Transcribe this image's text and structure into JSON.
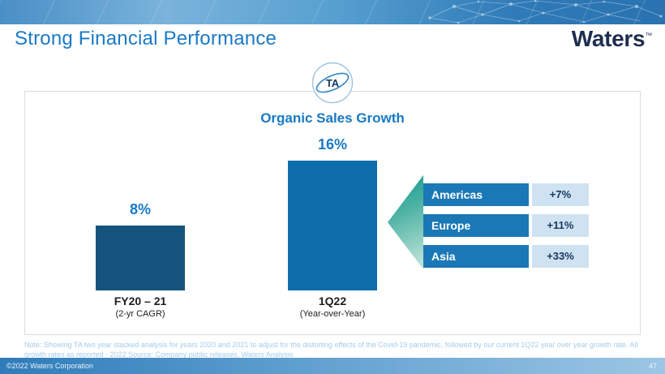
{
  "top": {
    "title": "Strong Financial Performance",
    "brand_name": "Waters",
    "brand_tm": "™"
  },
  "card": {
    "logo": "TA"
  },
  "chart_data": {
    "type": "bar",
    "title": "Organic Sales Growth",
    "categories": [
      "FY20 – 21",
      "1Q22"
    ],
    "category_subtitles": [
      "(2-yr CAGR)",
      "(Year-over-Year)"
    ],
    "values": [
      8,
      16
    ],
    "value_labels": [
      "8%",
      "16%"
    ],
    "unit": "percent",
    "ylim": [
      0,
      17
    ],
    "grid": false,
    "legend": "none",
    "bar_colors": [
      "#15537d",
      "#0d6dab"
    ],
    "regions": [
      {
        "name": "Americas",
        "growth": "+7%"
      },
      {
        "name": "Europe",
        "growth": "+11%"
      },
      {
        "name": "Asia",
        "growth": "+33%"
      }
    ]
  },
  "note": {
    "text": "Note: Showing TA two year stacked analysis for years 2020 and 2021 to adjust for the distorting effects of the Covid-19 pandemic, followed by our current 1Q22 year over year growth rate. All growth rates as reported - 2022 Source: Company public releases, Waters Analysis"
  },
  "footer": {
    "copyright": "©2022 Waters Corporation",
    "page_number": "47"
  },
  "colors": {
    "accent_blue": "#1779c4",
    "bar_fy20_21": "#15537d",
    "bar_1q22": "#0d6dab",
    "region_bar": "#1a78b6",
    "value_box": "#cfe2f1",
    "triangle_teal": "#0e9a8c",
    "brand_navy": "#1d2d4f",
    "note_text": "#a5cbe9"
  }
}
